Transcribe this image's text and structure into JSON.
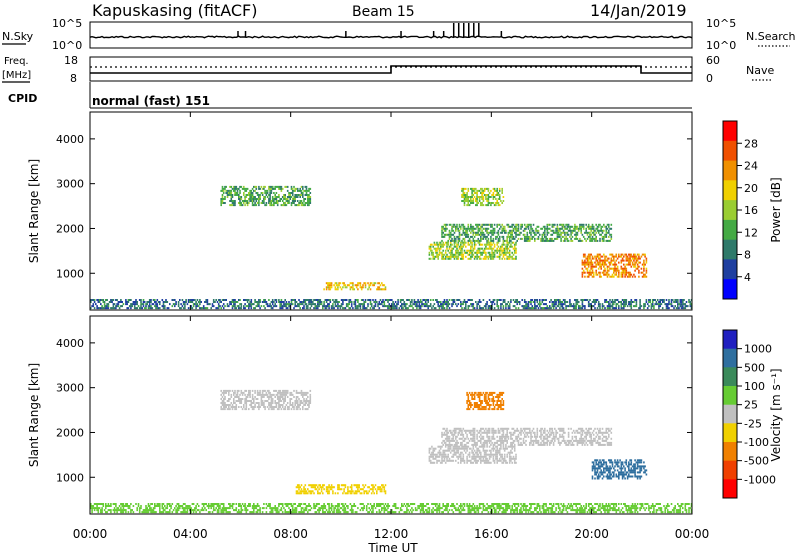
{
  "header": {
    "station": "Kapuskasing (fitACF)",
    "beam": "Beam 15",
    "date": "14/Jan/2019"
  },
  "top_panels": {
    "nsky_label": "N.Sky",
    "nsearch_label": "N.Search",
    "noise_ticks": [
      "10^5",
      "10^0"
    ],
    "freq_label_top": "Freq.",
    "freq_label_bottom": "[MHz]",
    "freq_ticks": [
      "18",
      "8"
    ],
    "nave_label": "Nave",
    "nave_ticks": [
      "60",
      "0"
    ],
    "cpid_label": "CPID",
    "cpid_value": "normal (fast) 151"
  },
  "colors": {
    "power": [
      "#0000ff",
      "#1f3fa0",
      "#2f7a6a",
      "#44aa44",
      "#9acd32",
      "#f0d000",
      "#f09000",
      "#f05000",
      "#ff0000"
    ],
    "velocity": [
      "#2020c0",
      "#2f6f9f",
      "#3a8a5a",
      "#66cc33",
      "#c0c0c0",
      "#f0d000",
      "#f08000",
      "#f04000",
      "#ff0000"
    ]
  },
  "chart_data": [
    {
      "type": "heatmap",
      "ylabel": "Slant Range [km]",
      "yticks": [
        "4000",
        "3000",
        "2000",
        "1000"
      ],
      "ylim": [
        180,
        4600
      ],
      "colorbar_label": "Power [dB]",
      "colorbar_ticks": [
        "28",
        "24",
        "20",
        "16",
        "12",
        "8",
        "4"
      ],
      "colorbar_range": [
        0,
        32
      ],
      "regions": [
        {
          "t0": 5.2,
          "t1": 8.8,
          "r0": 2500,
          "r1": 2950,
          "value": 12
        },
        {
          "t0": 9.3,
          "t1": 11.8,
          "r0": 620,
          "r1": 800,
          "value": 20
        },
        {
          "t0": 13.5,
          "t1": 17.0,
          "r0": 1300,
          "r1": 1700,
          "value": 16
        },
        {
          "t0": 14.8,
          "t1": 16.5,
          "r0": 2500,
          "r1": 2900,
          "value": 16
        },
        {
          "t0": 14.0,
          "t1": 20.8,
          "r0": 1700,
          "r1": 2100,
          "value": 12
        },
        {
          "t0": 19.6,
          "t1": 22.2,
          "r0": 900,
          "r1": 1400,
          "value": 24
        },
        {
          "t0": 0.0,
          "t1": 24.0,
          "r0": 200,
          "r1": 420,
          "value": 8
        }
      ]
    },
    {
      "type": "heatmap",
      "xlabel": "Time UT",
      "xticks": [
        "00:00",
        "04:00",
        "08:00",
        "12:00",
        "16:00",
        "20:00",
        "00:00"
      ],
      "xlim": [
        0,
        24
      ],
      "ylabel": "Slant Range [km]",
      "yticks": [
        "4000",
        "3000",
        "2000",
        "1000"
      ],
      "ylim": [
        180,
        4600
      ],
      "colorbar_label": "Velocity [m s⁻¹]",
      "colorbar_ticks": [
        "1000",
        "500",
        "100",
        "25",
        "-25",
        "-100",
        "-500",
        "-1000"
      ],
      "regions": [
        {
          "t0": 5.2,
          "t1": 8.8,
          "r0": 2500,
          "r1": 2950,
          "value": 0
        },
        {
          "t0": 8.2,
          "t1": 11.8,
          "r0": 620,
          "r1": 820,
          "value": -80
        },
        {
          "t0": 13.5,
          "t1": 17.0,
          "r0": 1300,
          "r1": 1700,
          "value": 10
        },
        {
          "t0": 15.0,
          "t1": 16.5,
          "r0": 2500,
          "r1": 2900,
          "value": -300
        },
        {
          "t0": 14.0,
          "t1": 20.8,
          "r0": 1700,
          "r1": 2100,
          "value": 0
        },
        {
          "t0": 20.0,
          "t1": 22.2,
          "r0": 950,
          "r1": 1400,
          "value": 150
        },
        {
          "t0": 0.0,
          "t1": 24.0,
          "r0": 200,
          "r1": 420,
          "value": 50
        }
      ]
    }
  ]
}
